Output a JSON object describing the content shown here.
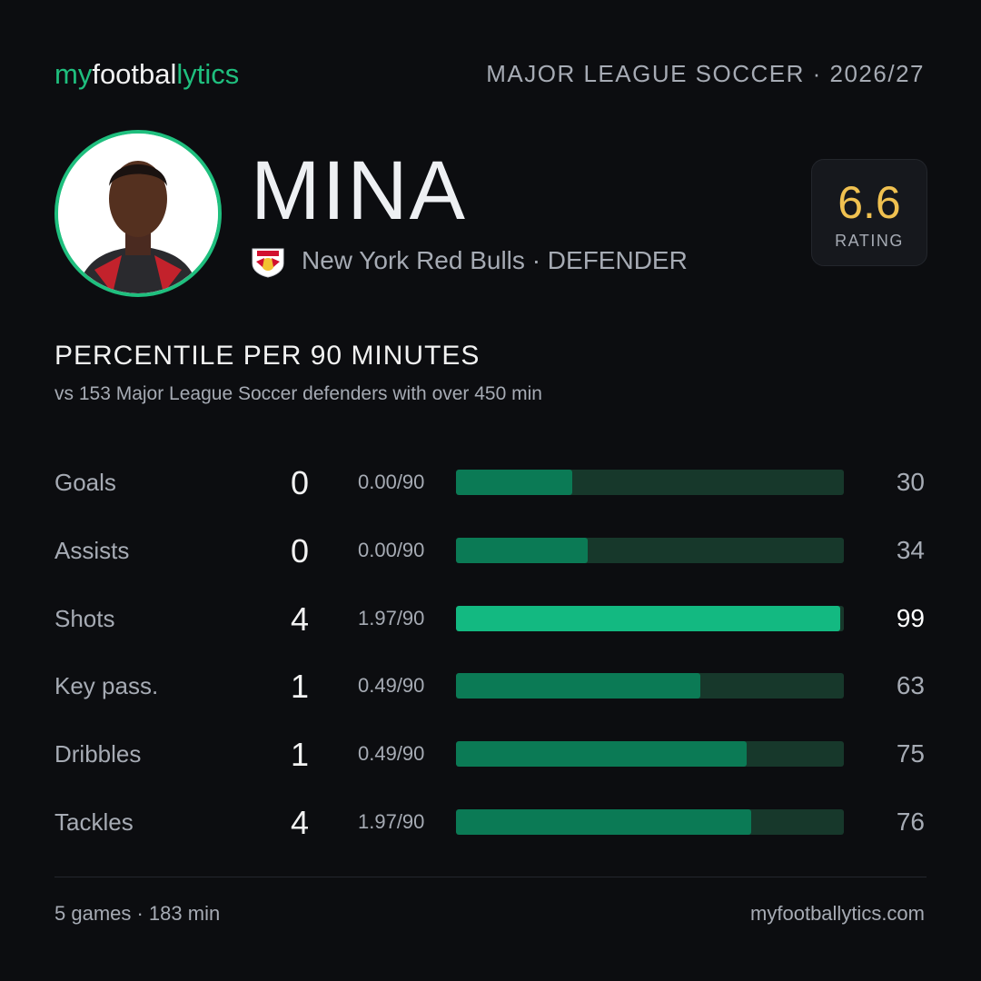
{
  "header": {
    "brand": [
      "my",
      "footbal",
      "lytics"
    ],
    "league": "MAJOR LEAGUE SOCCER · 2026/27"
  },
  "player": {
    "name": "MINA",
    "team": "New York Red Bulls",
    "separator": "·",
    "position": "DEFENDER",
    "rating": 6.6,
    "rating_label": "RATING"
  },
  "chart_data": {
    "type": "bar",
    "title": "PERCENTILE PER 90 MINUTES",
    "subtitle": "vs 153 Major League Soccer defenders with over 450 min",
    "categories": [
      "Goals",
      "Assists",
      "Shots",
      "Key pass.",
      "Dribbles",
      "Tackles"
    ],
    "totals": [
      0,
      0,
      4,
      1,
      1,
      4
    ],
    "per90": [
      "0.00/90",
      "0.00/90",
      "1.97/90",
      "0.49/90",
      "0.49/90",
      "1.97/90"
    ],
    "values": [
      30,
      34,
      99,
      63,
      75,
      76
    ],
    "xlim": [
      0,
      100
    ],
    "colors": [
      "#0b7a55",
      "#0b7a55",
      "#13b981",
      "#0b7a55",
      "#0b7a55",
      "#0b7a55"
    ],
    "highlight_color": "#13b981"
  },
  "footer": {
    "summary": "5 games · 183 min",
    "site": "myfootballytics.com"
  }
}
